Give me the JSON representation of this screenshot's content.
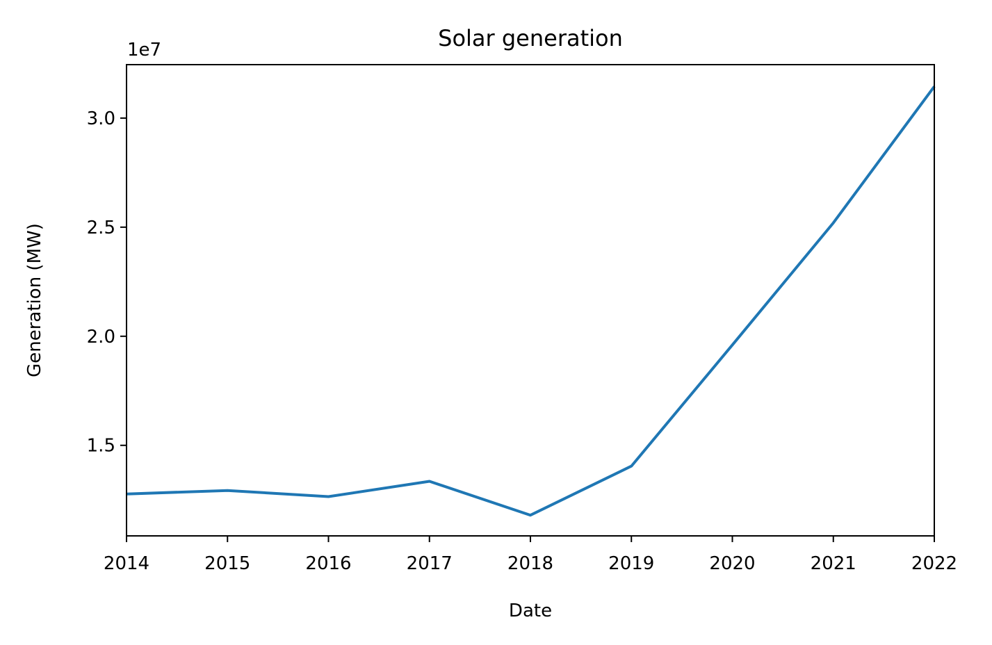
{
  "chart_data": {
    "type": "line",
    "title": "Solar generation",
    "xlabel": "Date",
    "ylabel": "Generation (MW)",
    "y_offset_label": "1e7",
    "x": [
      "2014",
      "2015",
      "2016",
      "2017",
      "2018",
      "2019",
      "2020",
      "2021",
      "2022"
    ],
    "series": [
      {
        "values": [
          12770000,
          12930000,
          12650000,
          13350000,
          11800000,
          14050000,
          19600000,
          25200000,
          31450000
        ]
      }
    ],
    "xlim": [
      "2014",
      "2022"
    ],
    "ylim": [
      10850000,
      32450000
    ],
    "yticks": [
      15000000,
      20000000,
      25000000,
      30000000
    ],
    "ytick_labels": [
      "1.5",
      "2.0",
      "2.5",
      "3.0"
    ],
    "xtick_labels": [
      "2014",
      "2015",
      "2016",
      "2017",
      "2018",
      "2019",
      "2020",
      "2021",
      "2022"
    ],
    "grid": false,
    "line_color": "#1f77b4"
  }
}
